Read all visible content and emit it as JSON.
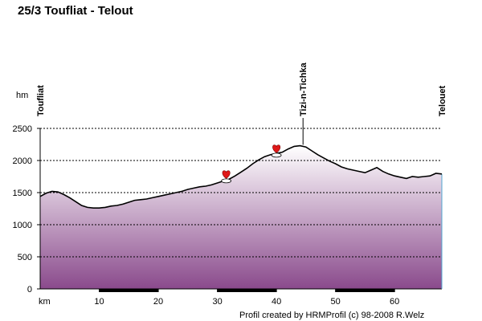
{
  "title": "25/3 Toufliat - Telout",
  "credit": "Profil created by HRMProfil (c) 98-2008 R.Welz",
  "colors": {
    "fill_top": "#ffffff",
    "fill_bottom": "#8a4a8c",
    "line": "#000000",
    "right_edge": "#4fa6d0",
    "heart": "#e01818"
  },
  "chart_data": {
    "type": "area",
    "title": "25/3 Toufliat - Telout",
    "xlabel": "km",
    "ylabel": "hm",
    "xlim": [
      0,
      68
    ],
    "ylim": [
      0,
      2500
    ],
    "grid": true,
    "x_ticks": [
      10,
      20,
      30,
      40,
      50,
      60
    ],
    "y_ticks": [
      0,
      500,
      1000,
      1500,
      2000,
      2500
    ],
    "x": [
      0,
      1,
      2,
      3,
      4,
      5,
      6,
      7,
      8,
      9,
      10,
      11,
      12,
      13,
      14,
      15,
      16,
      17,
      18,
      19,
      20,
      21,
      22,
      23,
      24,
      25,
      26,
      27,
      28,
      29,
      30,
      31,
      32,
      33,
      34,
      35,
      36,
      37,
      38,
      39,
      40,
      41,
      42,
      43,
      44,
      45,
      46,
      47,
      48,
      49,
      50,
      51,
      52,
      53,
      54,
      55,
      56,
      57,
      58,
      59,
      60,
      61,
      62,
      63,
      64,
      65,
      66,
      67,
      68
    ],
    "y": [
      1440,
      1490,
      1520,
      1510,
      1470,
      1420,
      1360,
      1300,
      1270,
      1260,
      1260,
      1270,
      1290,
      1300,
      1320,
      1350,
      1380,
      1390,
      1400,
      1420,
      1440,
      1460,
      1480,
      1500,
      1520,
      1550,
      1570,
      1590,
      1600,
      1620,
      1650,
      1680,
      1710,
      1760,
      1820,
      1880,
      1950,
      2010,
      2060,
      2090,
      2110,
      2130,
      2180,
      2220,
      2230,
      2210,
      2150,
      2090,
      2040,
      1990,
      1950,
      1900,
      1870,
      1850,
      1830,
      1810,
      1850,
      1890,
      1830,
      1790,
      1760,
      1740,
      1720,
      1750,
      1740,
      1750,
      1760,
      1800,
      1790
    ],
    "waypoints": [
      {
        "label": "Toufliat",
        "x": 0
      },
      {
        "label": "Tizi-n-Tichka",
        "x": 44.5
      },
      {
        "label": "Telouet",
        "x": 68
      }
    ],
    "markers": [
      {
        "type": "heart-icon",
        "x": 31.5,
        "y": 1720
      },
      {
        "type": "heart-icon",
        "x": 40,
        "y": 2120
      }
    ],
    "x_bar_segments": [
      [
        10,
        20
      ],
      [
        30,
        40
      ],
      [
        50,
        60
      ]
    ]
  }
}
